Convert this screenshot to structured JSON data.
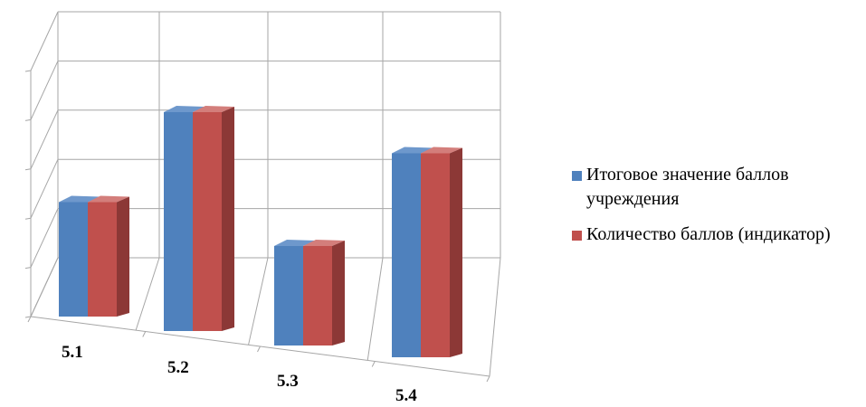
{
  "chart_data": {
    "type": "bar",
    "categories": [
      "5.1",
      "5.2",
      "5.3",
      "5.4"
    ],
    "series": [
      {
        "name": "Итоговое значение баллов учреждения",
        "values": [
          2.3,
          4.4,
          2.0,
          4.1
        ],
        "color": "#4F81BD"
      },
      {
        "name": "Количество баллов (индикатор)",
        "values": [
          2.3,
          4.4,
          2.0,
          4.1
        ],
        "color": "#C0504D"
      }
    ],
    "ylim": [
      0,
      5
    ],
    "grid": true,
    "legend_position": "right",
    "style": "3d-clustered-column"
  }
}
